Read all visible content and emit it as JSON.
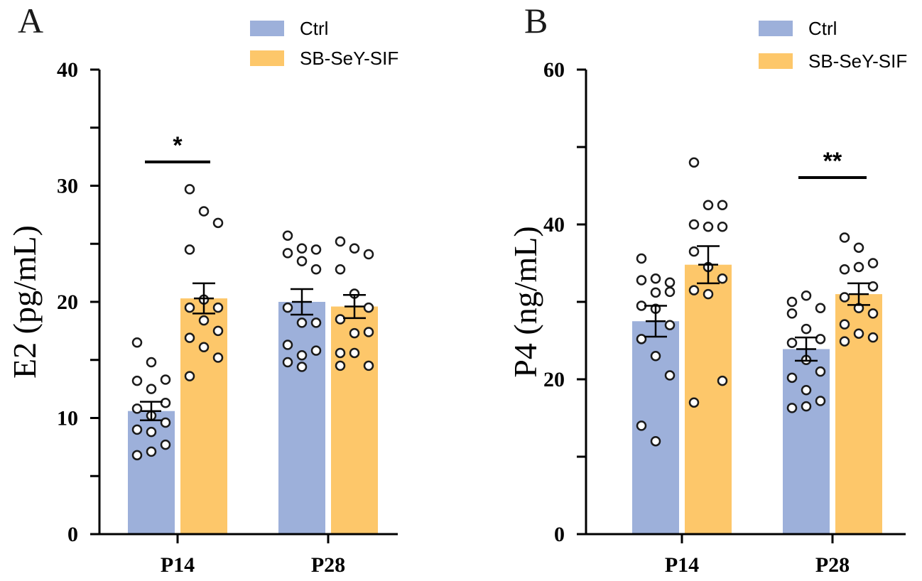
{
  "colors": {
    "Ctrl": "#9db0da",
    "SB-SeY-SIF": "#fdc76a",
    "Ctrl_point": "#cdd9f0",
    "SB-SeY-SIF_point": "#fde2ad"
  },
  "chart_data": [
    {
      "panel": "A",
      "type": "bar",
      "ylabel": "E2 (pg/mL)",
      "ylim": [
        0,
        40
      ],
      "yticks": [
        0,
        10,
        20,
        30,
        40
      ],
      "categories": [
        "P14",
        "P28"
      ],
      "legend": [
        "Ctrl",
        "SB-SeY-SIF"
      ],
      "series": [
        {
          "name": "Ctrl",
          "values": [
            10.6,
            20.0
          ],
          "sem": [
            0.8,
            1.1
          ],
          "points": [
            [
              16.5,
              14.8,
              13.3,
              13.2,
              12.5,
              11.3,
              10.8,
              10.2,
              9.6,
              9.0,
              8.8,
              7.7,
              6.8,
              7.1
            ],
            [
              25.7,
              24.6,
              24.5,
              24.2,
              23.5,
              22.8,
              19.5,
              18.2,
              18.2,
              16.3,
              15.4,
              15.8,
              14.8,
              14.4
            ]
          ]
        },
        {
          "name": "SB-SeY-SIF",
          "values": [
            20.3,
            19.6
          ],
          "sem": [
            1.3,
            1.0
          ],
          "points": [
            [
              29.7,
              27.8,
              26.8,
              24.5,
              20.2,
              19.5,
              19.5,
              18.4,
              17.5,
              16.9,
              16.1,
              15.2,
              13.6
            ],
            [
              25.2,
              24.6,
              24.1,
              22.8,
              20.7,
              19.5,
              18.5,
              17.3,
              17.4,
              15.6,
              15.6,
              14.5,
              14.5
            ]
          ]
        }
      ],
      "significance": [
        {
          "category": "P14",
          "label": "*"
        }
      ]
    },
    {
      "panel": "B",
      "type": "bar",
      "ylabel": "P4 (ng/mL)",
      "ylim": [
        0,
        60
      ],
      "yticks": [
        0,
        20,
        40,
        60
      ],
      "categories": [
        "P14",
        "P28"
      ],
      "legend": [
        "Ctrl",
        "SB-SeY-SIF"
      ],
      "series": [
        {
          "name": "Ctrl",
          "values": [
            27.5,
            23.9
          ],
          "sem": [
            2.0,
            1.5
          ],
          "points": [
            [
              35.6,
              33.0,
              32.5,
              32.8,
              31.2,
              31.3,
              29.5,
              29.1,
              27.0,
              25.2,
              23.0,
              20.5,
              14.0,
              12.0
            ],
            [
              30.0,
              30.8,
              29.2,
              28.5,
              26.5,
              25.2,
              24.7,
              22.5,
              21.0,
              20.2,
              18.6,
              17.2,
              16.3,
              16.5
            ]
          ]
        },
        {
          "name": "SB-SeY-SIF",
          "values": [
            34.8,
            31.0
          ],
          "sem": [
            2.4,
            1.4
          ],
          "points": [
            [
              48.0,
              42.5,
              42.5,
              40.0,
              39.7,
              39.7,
              36.5,
              34.5,
              33.0,
              31.5,
              31.0,
              19.8,
              17.0
            ],
            [
              38.3,
              37.0,
              35.0,
              34.2,
              34.5,
              32.0,
              30.6,
              29.2,
              28.5,
              27.1,
              25.9,
              25.4,
              24.9
            ]
          ]
        }
      ],
      "significance": [
        {
          "category": "P28",
          "label": "**"
        }
      ]
    }
  ]
}
